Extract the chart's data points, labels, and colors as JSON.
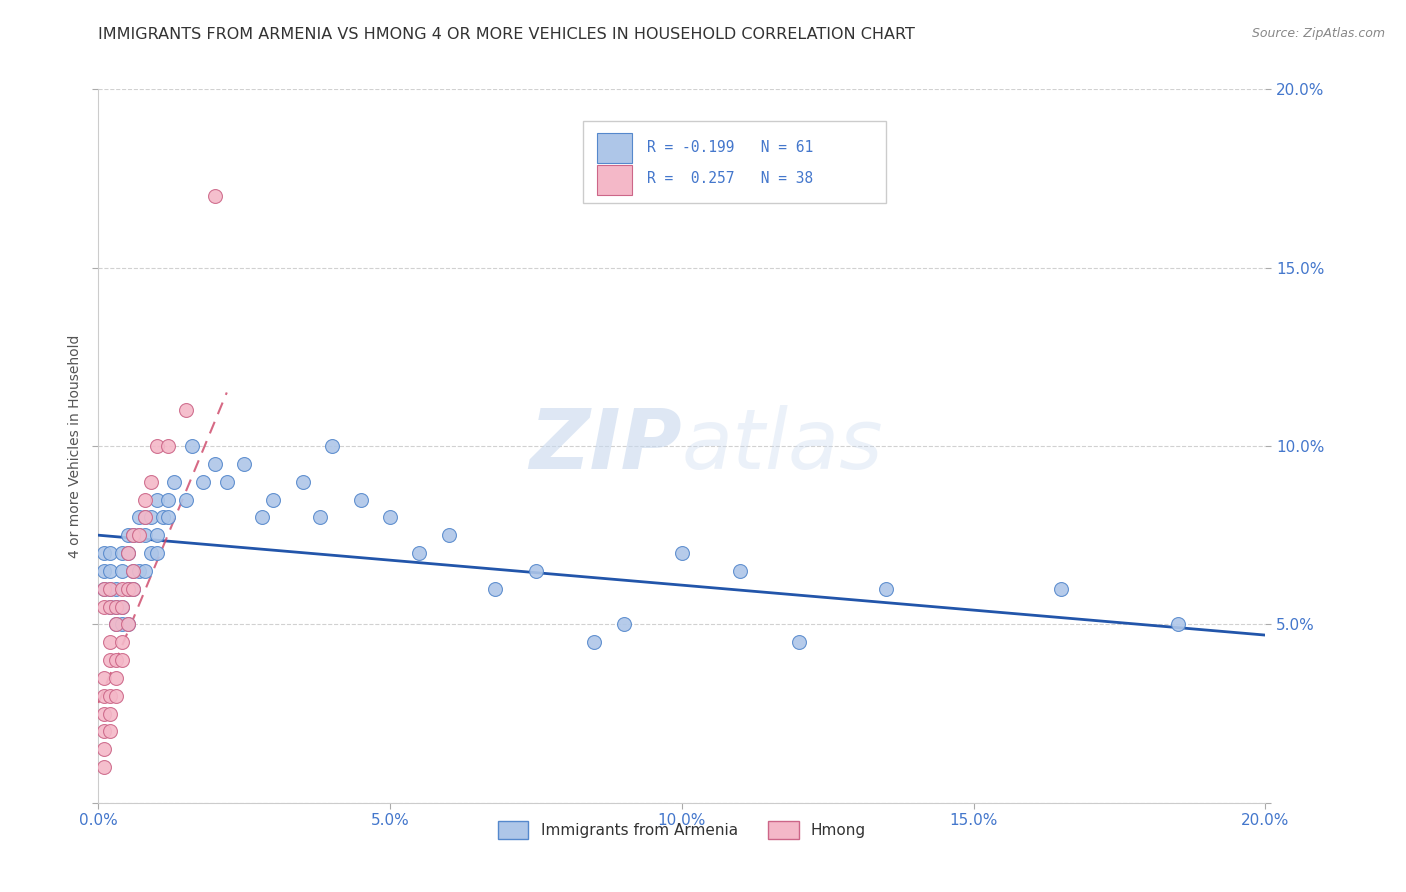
{
  "title": "IMMIGRANTS FROM ARMENIA VS HMONG 4 OR MORE VEHICLES IN HOUSEHOLD CORRELATION CHART",
  "source": "Source: ZipAtlas.com",
  "ylabel": "4 or more Vehicles in Household",
  "xlim": [
    0.0,
    0.2
  ],
  "ylim": [
    0.0,
    0.2
  ],
  "series1_name": "Immigrants from Armenia",
  "series1_R": "-0.199",
  "series1_N": "61",
  "series1_color": "#aec6e8",
  "series1_edge_color": "#5588cc",
  "series1_line_color": "#2255aa",
  "series2_name": "Hmong",
  "series2_R": "0.257",
  "series2_N": "38",
  "series2_color": "#f4b8c8",
  "series2_edge_color": "#cc6688",
  "series2_line_color": "#cc4466",
  "tick_color": "#4477cc",
  "grid_color": "#cccccc",
  "watermark_color": "#dce8f5",
  "armenia_x": [
    0.001,
    0.001,
    0.001,
    0.002,
    0.002,
    0.002,
    0.002,
    0.003,
    0.003,
    0.003,
    0.004,
    0.004,
    0.004,
    0.004,
    0.005,
    0.005,
    0.005,
    0.005,
    0.006,
    0.006,
    0.006,
    0.007,
    0.007,
    0.007,
    0.008,
    0.008,
    0.008,
    0.009,
    0.009,
    0.01,
    0.01,
    0.01,
    0.011,
    0.012,
    0.012,
    0.013,
    0.015,
    0.016,
    0.018,
    0.02,
    0.022,
    0.025,
    0.028,
    0.03,
    0.035,
    0.038,
    0.04,
    0.045,
    0.05,
    0.055,
    0.06,
    0.068,
    0.075,
    0.085,
    0.09,
    0.1,
    0.11,
    0.12,
    0.135,
    0.165,
    0.185
  ],
  "armenia_y": [
    0.06,
    0.065,
    0.07,
    0.055,
    0.06,
    0.065,
    0.07,
    0.05,
    0.055,
    0.06,
    0.05,
    0.055,
    0.065,
    0.07,
    0.05,
    0.06,
    0.07,
    0.075,
    0.06,
    0.065,
    0.075,
    0.065,
    0.075,
    0.08,
    0.065,
    0.075,
    0.08,
    0.07,
    0.08,
    0.07,
    0.075,
    0.085,
    0.08,
    0.08,
    0.085,
    0.09,
    0.085,
    0.1,
    0.09,
    0.095,
    0.09,
    0.095,
    0.08,
    0.085,
    0.09,
    0.08,
    0.1,
    0.085,
    0.08,
    0.07,
    0.075,
    0.06,
    0.065,
    0.045,
    0.05,
    0.07,
    0.065,
    0.045,
    0.06,
    0.06,
    0.05
  ],
  "hmong_x": [
    0.001,
    0.001,
    0.001,
    0.001,
    0.001,
    0.001,
    0.001,
    0.001,
    0.002,
    0.002,
    0.002,
    0.002,
    0.002,
    0.002,
    0.002,
    0.003,
    0.003,
    0.003,
    0.003,
    0.003,
    0.004,
    0.004,
    0.004,
    0.004,
    0.005,
    0.005,
    0.005,
    0.006,
    0.006,
    0.006,
    0.007,
    0.008,
    0.008,
    0.009,
    0.01,
    0.012,
    0.015,
    0.02
  ],
  "hmong_y": [
    0.01,
    0.015,
    0.02,
    0.025,
    0.03,
    0.035,
    0.055,
    0.06,
    0.02,
    0.025,
    0.03,
    0.04,
    0.045,
    0.055,
    0.06,
    0.03,
    0.035,
    0.04,
    0.05,
    0.055,
    0.04,
    0.045,
    0.055,
    0.06,
    0.05,
    0.06,
    0.07,
    0.06,
    0.065,
    0.075,
    0.075,
    0.08,
    0.085,
    0.09,
    0.1,
    0.1,
    0.11,
    0.17
  ],
  "arm_line_x0": 0.0,
  "arm_line_y0": 0.075,
  "arm_line_x1": 0.2,
  "arm_line_y1": 0.047,
  "hmong_line_x0": 0.0,
  "hmong_line_y0": 0.028,
  "hmong_line_x1": 0.022,
  "hmong_line_y1": 0.115
}
